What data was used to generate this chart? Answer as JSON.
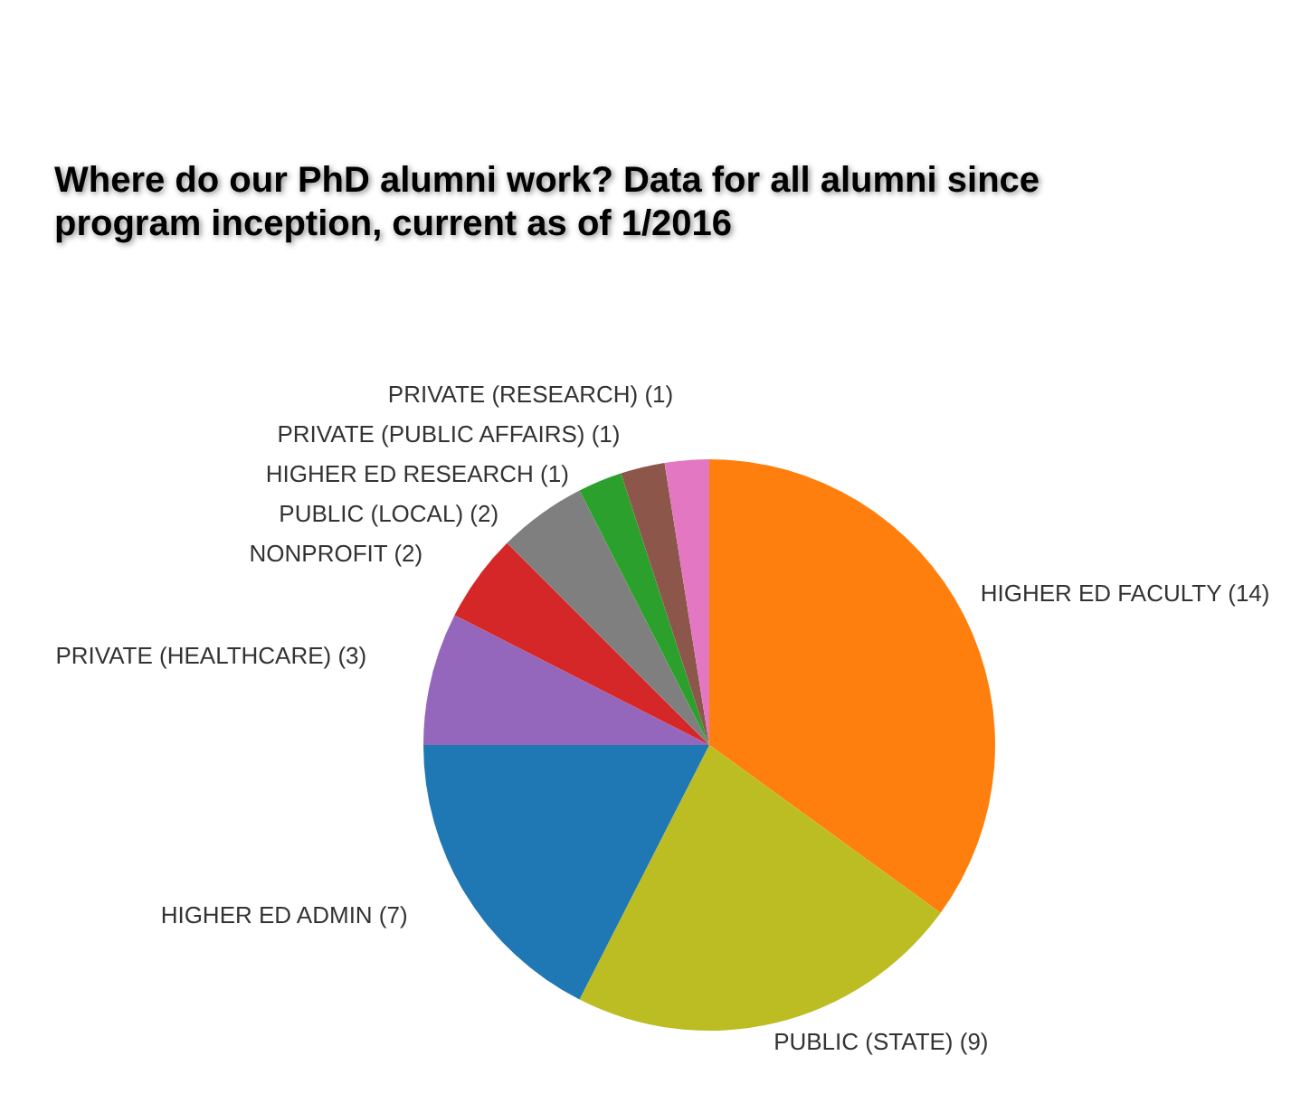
{
  "chart_data": {
    "type": "pie",
    "title": "Where do our PhD alumni work? Data for all alumni since\nprogram inception, current as of 1/2016",
    "categories": [
      "HIGHER ED FACULTY",
      "PUBLIC (STATE)",
      "HIGHER ED ADMIN",
      "PRIVATE (HEALTHCARE)",
      "NONPROFIT",
      "PUBLIC (LOCAL)",
      "HIGHER ED RESEARCH",
      "PRIVATE (PUBLIC AFFAIRS)",
      "PRIVATE (RESEARCH)"
    ],
    "values": [
      14,
      9,
      7,
      3,
      2,
      2,
      1,
      1,
      1
    ],
    "colors": [
      "#ff7f0e",
      "#bcbd22",
      "#1f77b4",
      "#9467bd",
      "#d62728",
      "#7f7f7f",
      "#2ca02c",
      "#8c564b",
      "#e377c2"
    ],
    "value_labels": [
      "(14)",
      "(9)",
      "(7)",
      "(3)",
      "(2)",
      "(2)",
      "(1)",
      "(1)",
      "(1)"
    ],
    "legend": false
  }
}
